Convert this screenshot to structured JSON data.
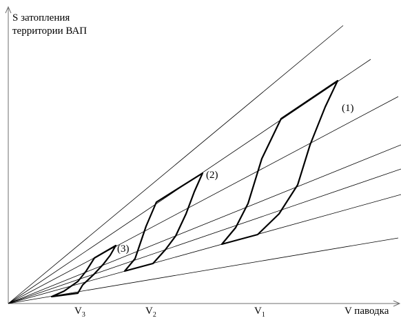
{
  "y_axis_label_line1": "S затопления",
  "y_axis_label_line2": "территории ВАП",
  "x_axis_label": "V паводка",
  "x_ticks": [
    {
      "base": "V",
      "sub": "3"
    },
    {
      "base": "V",
      "sub": "2"
    },
    {
      "base": "V",
      "sub": "1"
    }
  ],
  "loop_labels": [
    "(1)",
    "(2)",
    "(3)"
  ],
  "colors": {
    "line": "#000000",
    "axis": "#6e6e6e",
    "background": "#ffffff"
  }
}
